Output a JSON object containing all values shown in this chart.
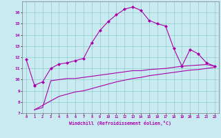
{
  "xlabel": "Windchill (Refroidissement éolien,°C)",
  "ylabel": "",
  "xlim": [
    -0.5,
    23.5
  ],
  "ylim": [
    7,
    17
  ],
  "yticks": [
    7,
    8,
    9,
    10,
    11,
    12,
    13,
    14,
    15,
    16
  ],
  "xticks": [
    0,
    1,
    2,
    3,
    4,
    5,
    6,
    7,
    8,
    9,
    10,
    11,
    12,
    13,
    14,
    15,
    16,
    17,
    18,
    19,
    20,
    21,
    22,
    23
  ],
  "background_color": "#c8eaf0",
  "line_color": "#aa00aa",
  "grid_color": "#90cccc",
  "lines": [
    {
      "x": [
        0,
        1
      ],
      "y": [
        11.8,
        9.5
      ],
      "marker": "D"
    },
    {
      "x": [
        1,
        2,
        3,
        4,
        5,
        6,
        7,
        8,
        9,
        10,
        11,
        12,
        13,
        14,
        15,
        16,
        17,
        18,
        19,
        20,
        21,
        22,
        23
      ],
      "y": [
        9.5,
        9.8,
        11.0,
        11.4,
        11.5,
        11.7,
        11.9,
        13.3,
        14.4,
        15.2,
        15.8,
        16.3,
        16.5,
        16.2,
        15.3,
        15.0,
        14.8,
        12.8,
        11.2,
        12.7,
        12.3,
        11.5,
        11.2
      ],
      "marker": "D"
    },
    {
      "x": [
        1,
        2,
        3,
        4,
        5,
        6,
        7,
        8,
        9,
        10,
        11,
        12,
        13,
        14,
        15,
        16,
        17,
        18,
        19,
        20,
        21,
        22,
        23
      ],
      "y": [
        7.3,
        7.5,
        9.9,
        10.0,
        10.1,
        10.1,
        10.2,
        10.3,
        10.4,
        10.5,
        10.6,
        10.7,
        10.8,
        10.8,
        10.9,
        10.95,
        11.0,
        11.1,
        11.2,
        11.25,
        11.3,
        11.35,
        11.2
      ],
      "marker": null
    },
    {
      "x": [
        1,
        2,
        3,
        4,
        5,
        6,
        7,
        8,
        9,
        10,
        11,
        12,
        13,
        14,
        15,
        16,
        17,
        18,
        19,
        20,
        21,
        22,
        23
      ],
      "y": [
        7.3,
        7.7,
        8.1,
        8.5,
        8.7,
        8.9,
        9.0,
        9.2,
        9.4,
        9.6,
        9.8,
        9.95,
        10.1,
        10.2,
        10.35,
        10.45,
        10.55,
        10.65,
        10.75,
        10.85,
        10.9,
        11.0,
        11.1
      ],
      "marker": null
    }
  ]
}
